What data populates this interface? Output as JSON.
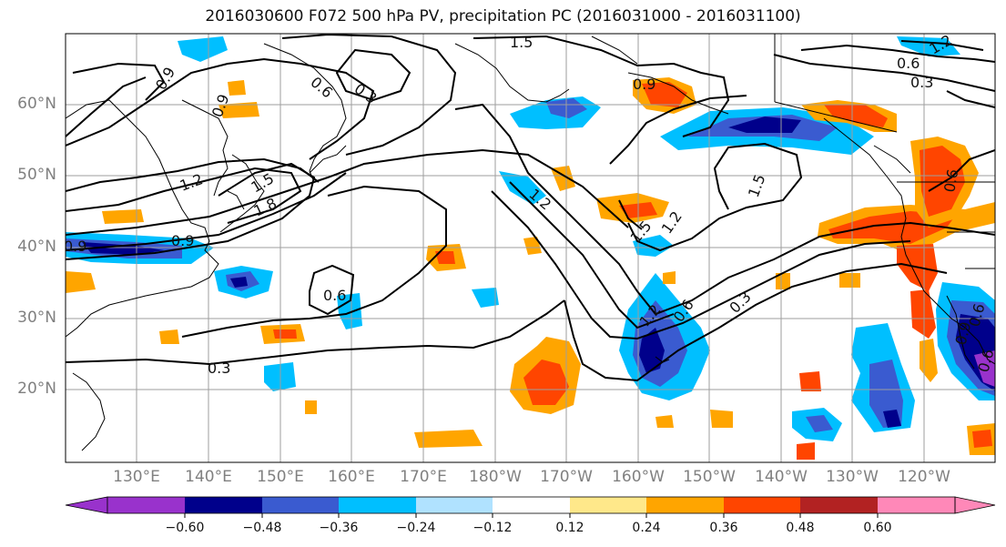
{
  "title": "2016030600 F072 500 hPa PV, precipitation PC (2016031000 - 2016031100)",
  "lat_labels": [
    "60°N",
    "50°N",
    "40°N",
    "30°N",
    "20°N"
  ],
  "lon_labels": [
    "130°E",
    "140°E",
    "150°E",
    "160°E",
    "170°E",
    "180°W",
    "170°W",
    "160°W",
    "150°W",
    "140°W",
    "130°W",
    "120°W"
  ],
  "colorbar": {
    "ticks": [
      "−0.60",
      "−0.48",
      "−0.36",
      "−0.24",
      "−0.12",
      "0.12",
      "0.24",
      "0.36",
      "0.48",
      "0.60"
    ],
    "colors": [
      "#9932cc",
      "#00008b",
      "#3a5bd0",
      "#00bfff",
      "#b0e2ff",
      "#ffffff",
      "#ffe88a",
      "#ffa500",
      "#ff4500",
      "#b22222",
      "#ff88b8"
    ]
  },
  "contour_labels": [
    "1.5",
    "1.2",
    "0.9",
    "0.6",
    "0.3",
    "0.9",
    "0.6",
    "0.3",
    "0.9",
    "0.9",
    "1.2",
    "1.5",
    "1.8",
    "0.9",
    "1.2",
    "1.5",
    "1.2",
    "0.6",
    "0.3",
    "0.3",
    "0.6",
    "0.6",
    "1.5",
    "1.2",
    "0.9",
    "0.6",
    "0.6"
  ]
}
